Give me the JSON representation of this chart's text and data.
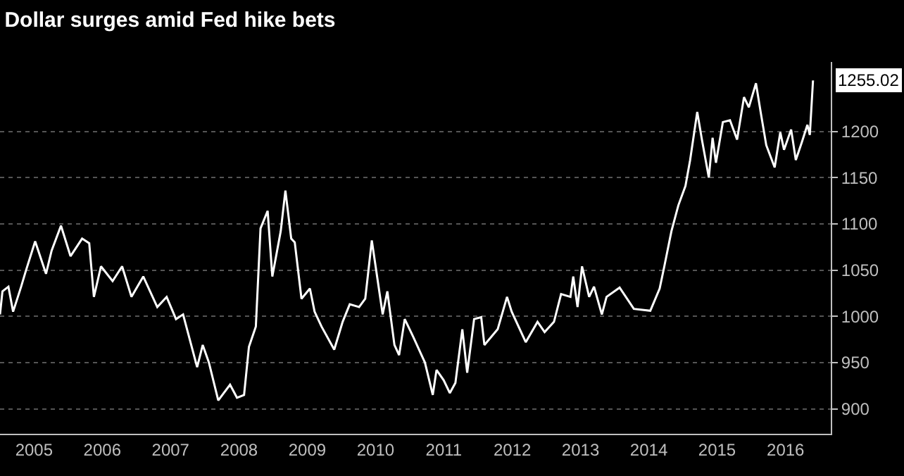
{
  "chart_data": {
    "type": "line",
    "title": "Dollar surges amid Fed hike bets",
    "x": [
      "2005-01-01",
      "2005-01-14",
      "2005-02-15",
      "2005-03-12",
      "2005-04-24",
      "2005-05-19",
      "2005-07-08",
      "2005-09-04",
      "2005-10-04",
      "2005-11-23",
      "2006-01-13",
      "2006-03-16",
      "2006-04-23",
      "2006-05-18",
      "2006-06-25",
      "2006-08-26",
      "2006-10-16",
      "2006-12-05",
      "2007-02-06",
      "2007-04-22",
      "2007-06-11",
      "2007-07-31",
      "2007-09-07",
      "2007-11-21",
      "2007-12-21",
      "2008-01-23",
      "2008-03-13",
      "2008-05-15",
      "2008-06-21",
      "2008-07-29",
      "2008-08-24",
      "2008-09-30",
      "2008-10-25",
      "2008-12-02",
      "2008-12-27",
      "2009-02-10",
      "2009-03-07",
      "2009-04-07",
      "2009-04-26",
      "2009-06-01",
      "2009-07-16",
      "2009-08-10",
      "2009-09-16",
      "2009-11-23",
      "2010-01-07",
      "2010-02-14",
      "2010-04-05",
      "2010-05-08",
      "2010-06-12",
      "2010-08-09",
      "2010-09-03",
      "2010-10-11",
      "2010-11-05",
      "2010-12-05",
      "2011-01-19",
      "2011-03-23",
      "2011-05-04",
      "2011-05-24",
      "2011-07-01",
      "2011-08-03",
      "2011-09-02",
      "2011-10-09",
      "2011-11-04",
      "2011-12-11",
      "2012-01-18",
      "2012-02-04",
      "2012-04-15",
      "2012-06-04",
      "2012-06-29",
      "2012-09-12",
      "2012-11-14",
      "2012-12-22",
      "2013-02-10",
      "2013-03-20",
      "2013-05-09",
      "2013-05-24",
      "2013-06-16",
      "2013-07-10",
      "2013-08-17",
      "2013-09-12",
      "2013-10-24",
      "2013-11-18",
      "2014-01-27",
      "2014-04-13",
      "2014-07-10",
      "2014-08-29",
      "2014-09-23",
      "2014-10-31",
      "2014-12-07",
      "2015-01-14",
      "2015-02-08",
      "2015-03-18",
      "2015-04-12",
      "2015-05-19",
      "2015-06-08",
      "2015-06-26",
      "2015-08-02",
      "2015-09-09",
      "2015-10-17",
      "2015-11-23",
      "2015-12-19",
      "2016-01-26",
      "2016-02-20",
      "2016-03-21",
      "2016-05-05",
      "2016-06-04",
      "2016-06-24",
      "2016-08-01",
      "2016-08-26",
      "2016-09-27",
      "2016-10-27",
      "2016-11-09",
      "2016-11-26"
    ],
    "series": [
      {
        "color": "#ffffff",
        "values": [
          1002,
          1027,
          1032,
          1005,
          1032,
          1049,
          1081,
          1046,
          1071,
          1098,
          1065,
          1084,
          1079,
          1021,
          1054,
          1038,
          1054,
          1021,
          1043,
          1010,
          1021,
          997,
          1002,
          945,
          969,
          950,
          909,
          926,
          912,
          915,
          967,
          989,
          1095,
          1114,
          1043,
          1092,
          1136,
          1084,
          1080,
          1019,
          1030,
          1005,
          989,
          964,
          994,
          1013,
          1010,
          1019,
          1082,
          1002,
          1027,
          969,
          958,
          997,
          978,
          950,
          915,
          942,
          931,
          917,
          928,
          986,
          939,
          997,
          999,
          969,
          986,
          1021,
          1005,
          972,
          994,
          983,
          994,
          1024,
          1021,
          1043,
          1010,
          1054,
          1021,
          1032,
          1002,
          1021,
          1031,
          1008,
          1006,
          1030,
          1054,
          1092,
          1120,
          1141,
          1169,
          1221,
          1191,
          1150,
          1193,
          1166,
          1210,
          1212,
          1191,
          1237,
          1226,
          1252,
          1221,
          1185,
          1161,
          1199,
          1180,
          1202,
          1169,
          1188,
          1207,
          1196,
          1255.02
        ]
      }
    ],
    "annotations": [
      {
        "text": "1255.02",
        "x": "2016-11-26",
        "y": 1255.02
      }
    ],
    "xlim": [
      "2005-01-01",
      "2017-03-01"
    ],
    "xticks": [
      {
        "value": "2005-07-02",
        "label": "2005"
      },
      {
        "value": "2006-07-02",
        "label": "2006"
      },
      {
        "value": "2007-07-02",
        "label": "2007"
      },
      {
        "value": "2008-07-02",
        "label": "2008"
      },
      {
        "value": "2009-07-02",
        "label": "2009"
      },
      {
        "value": "2010-07-02",
        "label": "2010"
      },
      {
        "value": "2011-07-02",
        "label": "2011"
      },
      {
        "value": "2012-07-02",
        "label": "2012"
      },
      {
        "value": "2013-07-02",
        "label": "2013"
      },
      {
        "value": "2014-07-02",
        "label": "2014"
      },
      {
        "value": "2015-07-02",
        "label": "2015"
      },
      {
        "value": "2016-07-02",
        "label": "2016"
      }
    ],
    "ylim": [
      873,
      1275
    ],
    "yticks": [
      900,
      950,
      1000,
      1050,
      1100,
      1150,
      1200
    ],
    "grid": "y",
    "marker": "none",
    "line_style": "solid"
  }
}
